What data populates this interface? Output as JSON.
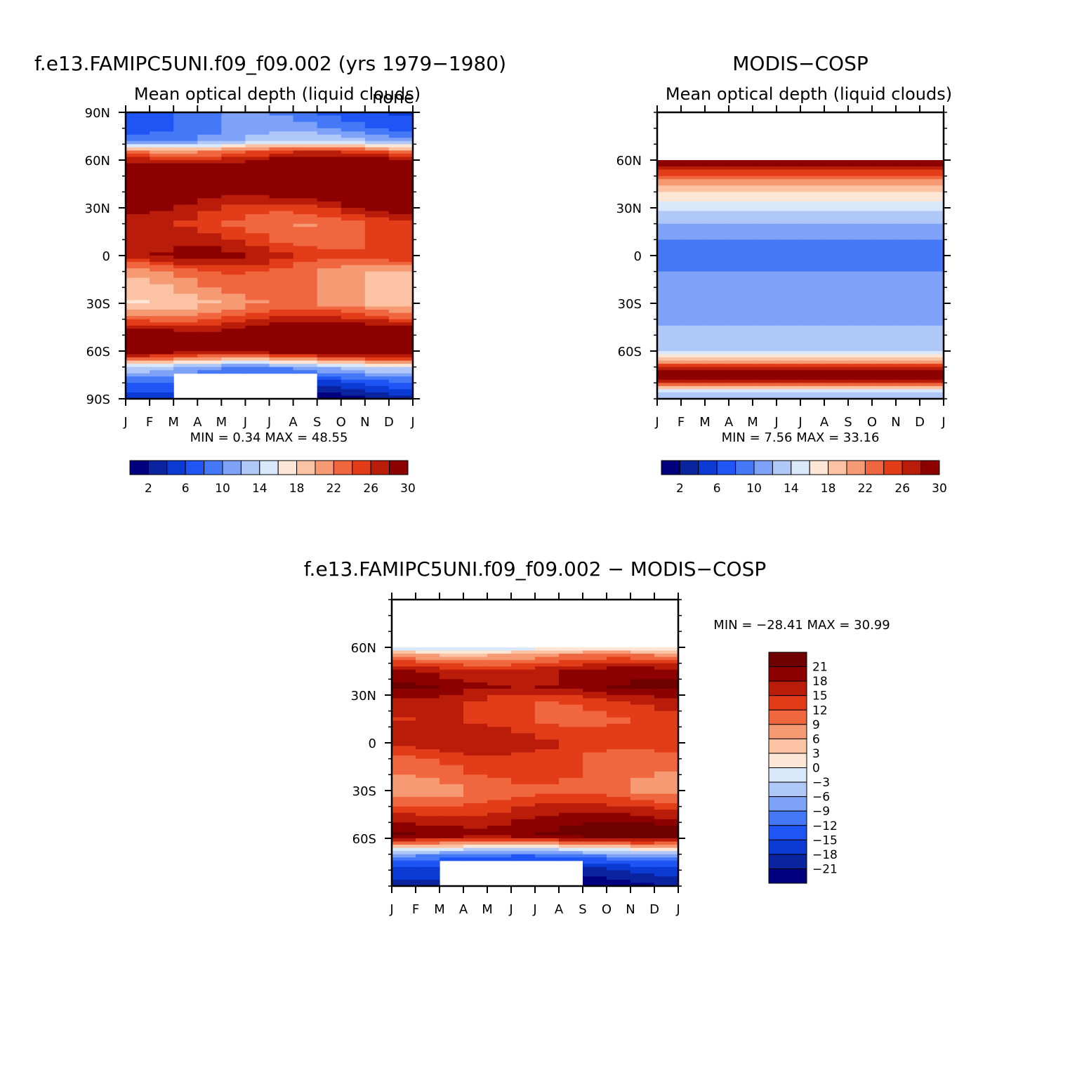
{
  "chart_data": [
    {
      "type": "heatmap",
      "title": "f.e13.FAMIPC5UNI.f09_f09.002 (yrs 1979−1980)",
      "subtitle": "Mean optical depth (liquid clouds)",
      "corner_label": "none",
      "x_ticks": [
        "J",
        "F",
        "M",
        "A",
        "M",
        "J",
        "J",
        "A",
        "S",
        "O",
        "N",
        "D",
        "J"
      ],
      "y_ticks": [
        "90N",
        "60N",
        "30N",
        "0",
        "30S",
        "60S",
        "90S"
      ],
      "y_range": [
        -90,
        90
      ],
      "stats_text": "MIN =    0.34  MAX =   48.55",
      "min": 0.34,
      "max": 48.55,
      "colorbar_labels": [
        "2",
        "6",
        "10",
        "14",
        "18",
        "22",
        "26",
        "30"
      ],
      "lat_profile": [
        {
          "lat": 90,
          "v": 8
        },
        {
          "lat": 80,
          "v": 9
        },
        {
          "lat": 72,
          "v": 12
        },
        {
          "lat": 65,
          "v": 24
        },
        {
          "lat": 55,
          "v": 32
        },
        {
          "lat": 40,
          "v": 31
        },
        {
          "lat": 30,
          "v": 27
        },
        {
          "lat": 20,
          "v": 24
        },
        {
          "lat": 10,
          "v": 25
        },
        {
          "lat": 0,
          "v": 27
        },
        {
          "lat": -10,
          "v": 22
        },
        {
          "lat": -20,
          "v": 21
        },
        {
          "lat": -30,
          "v": 20
        },
        {
          "lat": -40,
          "v": 25
        },
        {
          "lat": -50,
          "v": 32
        },
        {
          "lat": -60,
          "v": 31
        },
        {
          "lat": -65,
          "v": 22
        },
        {
          "lat": -70,
          "v": 12
        },
        {
          "lat": -80,
          "v": 6
        },
        {
          "lat": -90,
          "v": 2
        }
      ]
    },
    {
      "type": "heatmap",
      "title": "MODIS−COSP",
      "subtitle": "Mean optical depth (liquid clouds)",
      "x_ticks": [
        "J",
        "F",
        "M",
        "A",
        "M",
        "J",
        "J",
        "A",
        "S",
        "O",
        "N",
        "D",
        "J"
      ],
      "y_ticks": [
        "60N",
        "30N",
        "0",
        "30S",
        "60S"
      ],
      "y_range": [
        -90,
        90
      ],
      "stats_text": "MIN =     7.56  MAX =   33.16",
      "min": 7.56,
      "max": 33.16,
      "colorbar_labels": [
        "2",
        "6",
        "10",
        "14",
        "18",
        "22",
        "26",
        "30"
      ],
      "lat_profile": [
        {
          "lat": 60,
          "v": 33
        },
        {
          "lat": 55,
          "v": 27
        },
        {
          "lat": 45,
          "v": 20
        },
        {
          "lat": 35,
          "v": 16
        },
        {
          "lat": 28,
          "v": 14
        },
        {
          "lat": 20,
          "v": 12
        },
        {
          "lat": 10,
          "v": 10
        },
        {
          "lat": 0,
          "v": 8
        },
        {
          "lat": -10,
          "v": 10
        },
        {
          "lat": -20,
          "v": 10
        },
        {
          "lat": -30,
          "v": 10
        },
        {
          "lat": -40,
          "v": 11
        },
        {
          "lat": -50,
          "v": 13
        },
        {
          "lat": -60,
          "v": 14
        },
        {
          "lat": -65,
          "v": 18
        },
        {
          "lat": -70,
          "v": 26
        },
        {
          "lat": -75,
          "v": 32
        },
        {
          "lat": -80,
          "v": 25
        },
        {
          "lat": -85,
          "v": 14
        },
        {
          "lat": -90,
          "v": 12
        }
      ]
    },
    {
      "type": "heatmap",
      "title": "f.e13.FAMIPC5UNI.f09_f09.002 − MODIS−COSP",
      "x_ticks": [
        "J",
        "F",
        "M",
        "A",
        "M",
        "J",
        "J",
        "A",
        "S",
        "O",
        "N",
        "D",
        "J"
      ],
      "y_ticks": [
        "60N",
        "30N",
        "0",
        "30S",
        "60S"
      ],
      "y_range": [
        -90,
        90
      ],
      "stats_text": "MIN = −28.41  MAX =   30.99",
      "min": -28.41,
      "max": 30.99,
      "colorbar_labels": [
        "21",
        "18",
        "15",
        "12",
        "9",
        "6",
        "3",
        "0",
        "−3",
        "−6",
        "−9",
        "−12",
        "−15",
        "−18",
        "−21"
      ],
      "lat_profile": [
        {
          "lat": 60,
          "v": -2
        },
        {
          "lat": 55,
          "v": 8
        },
        {
          "lat": 45,
          "v": 18
        },
        {
          "lat": 35,
          "v": 20
        },
        {
          "lat": 25,
          "v": 14
        },
        {
          "lat": 15,
          "v": 13
        },
        {
          "lat": 5,
          "v": 15
        },
        {
          "lat": 0,
          "v": 16
        },
        {
          "lat": -10,
          "v": 12
        },
        {
          "lat": -20,
          "v": 11
        },
        {
          "lat": -30,
          "v": 9
        },
        {
          "lat": -40,
          "v": 14
        },
        {
          "lat": -50,
          "v": 19
        },
        {
          "lat": -58,
          "v": 22
        },
        {
          "lat": -63,
          "v": 10
        },
        {
          "lat": -67,
          "v": -2
        },
        {
          "lat": -72,
          "v": -12
        },
        {
          "lat": -80,
          "v": -18
        },
        {
          "lat": -90,
          "v": -22
        }
      ]
    }
  ],
  "colors": {
    "abs_levels": [
      "#00007f",
      "#0a24a0",
      "#0b3bd4",
      "#1f55f5",
      "#4478f7",
      "#7ea2f7",
      "#b0c8f8",
      "#d9e8fb",
      "#fde6d6",
      "#fbc3a4",
      "#f69a74",
      "#f0663f",
      "#e23c19",
      "#b91d0a",
      "#8c0000"
    ],
    "diff_levels": [
      "#00007f",
      "#0a24a0",
      "#0b3bd4",
      "#1f55f5",
      "#4478f7",
      "#7ea2f7",
      "#b0c8f8",
      "#d9e8fb",
      "#fde6d6",
      "#fbc3a4",
      "#f69a74",
      "#f0663f",
      "#e23c19",
      "#b91d0a",
      "#8c0000",
      "#6e0000"
    ]
  }
}
